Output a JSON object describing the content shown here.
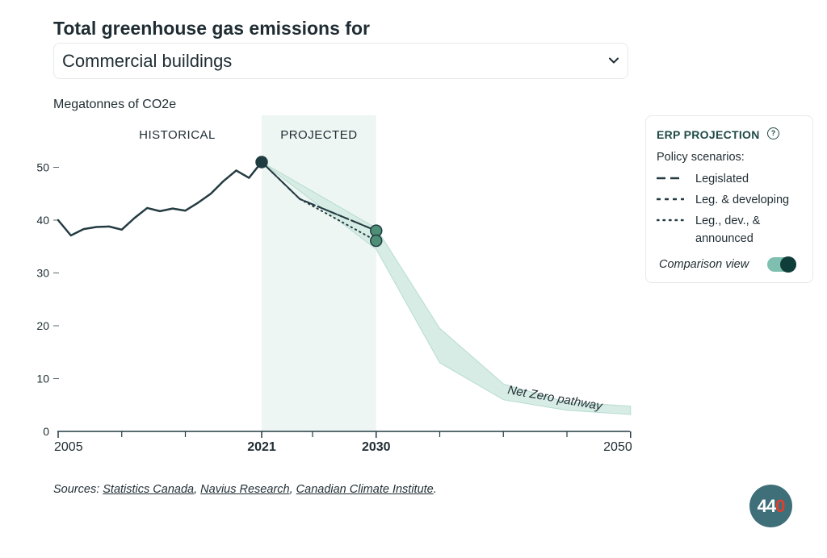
{
  "header": {
    "title": "Total greenhouse gas emissions for",
    "dropdown_value": "Commercial buildings",
    "dropdown_icon": "chevron-down-icon"
  },
  "chart_data": {
    "type": "line",
    "ylabel": "Megatonnes of CO2e",
    "region_labels": [
      "HISTORICAL",
      "PROJECTED"
    ],
    "projected_range": [
      2021,
      2030
    ],
    "xlim": [
      2005,
      2050
    ],
    "ylim": [
      0,
      50
    ],
    "x_ticks": [
      2005,
      2021,
      2030,
      2050
    ],
    "x_minor_ticks": [
      2010,
      2015,
      2025,
      2035,
      2040,
      2045
    ],
    "y_ticks": [
      0,
      10,
      20,
      30,
      40,
      50
    ],
    "series": [
      {
        "style": "solid",
        "x": [
          2005,
          2006,
          2007,
          2008,
          2009,
          2010,
          2011,
          2012,
          2013,
          2014,
          2015,
          2016,
          2017,
          2018,
          2019,
          2020,
          2021
        ],
        "values": [
          40.0,
          37.1,
          38.3,
          38.7,
          38.8,
          38.2,
          40.4,
          42.3,
          41.7,
          42.2,
          41.8,
          43.3,
          45.0,
          47.4,
          49.4,
          48.0,
          51.0
        ]
      },
      {
        "name": "Legislated",
        "style": "dash-long",
        "x": [
          2021,
          2024,
          2030
        ],
        "values": [
          51.0,
          44.0,
          38.0
        ]
      },
      {
        "name": "Leg. & developing",
        "style": "dash-short",
        "x": [
          2021,
          2024,
          2030
        ],
        "values": [
          51.0,
          44.0,
          38.0
        ]
      },
      {
        "name": "Leg., dev., & announced",
        "style": "dot",
        "x": [
          2021,
          2024,
          2030
        ],
        "values": [
          51.0,
          44.0,
          36.1
        ]
      }
    ],
    "band": {
      "label": "Net Zero pathway",
      "x": [
        2021,
        2030,
        2035,
        2040,
        2045,
        2050
      ],
      "upper": [
        51.0,
        38.5,
        19.5,
        9.0,
        5.5,
        4.8
      ],
      "lower": [
        51.0,
        34.5,
        13.0,
        6.0,
        4.0,
        3.2
      ]
    },
    "markers": [
      {
        "x": 2021,
        "y": 51.0,
        "color": "#1f3d40"
      },
      {
        "x": 2030,
        "y": 38.0,
        "color": "#4f8f78"
      },
      {
        "x": 2030,
        "y": 36.1,
        "color": "#4f8f78"
      }
    ]
  },
  "legend": {
    "title": "ERP PROJECTION",
    "help_icon": "question-circle-icon",
    "subtitle": "Policy scenarios:",
    "items": [
      {
        "label": "Legislated",
        "style": "dash-long"
      },
      {
        "label": "Leg. & developing",
        "style": "dash-short"
      },
      {
        "label": "Leg., dev., &",
        "label2": "announced",
        "style": "dot"
      }
    ],
    "comparison_label": "Comparison view",
    "comparison_on": true
  },
  "footer": {
    "sources_prefix": "Sources:",
    "sources": [
      "Statistics Canada",
      "Navius Research",
      "Canadian Climate Institute"
    ],
    "logo_text": "44",
    "logo_text_accent": "0"
  },
  "colors": {
    "line": "#243b42",
    "band_fill": "#d7ece5",
    "band_stroke": "#b6dcd0",
    "projected_bg": "#eef6f3",
    "accent": "#4f8f78"
  }
}
